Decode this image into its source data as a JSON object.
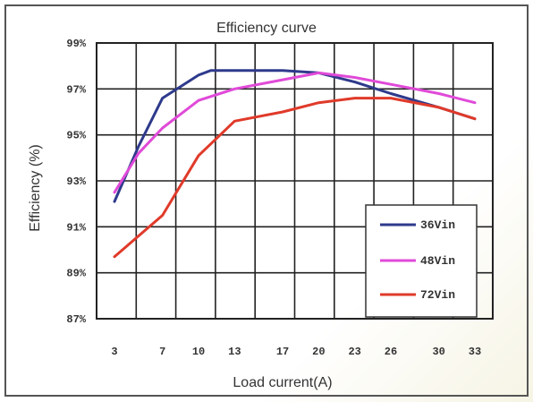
{
  "chart_data": {
    "type": "line",
    "title": "Efficiency curve",
    "xlabel": "Load current(A)",
    "ylabel": "Efficiency (%)",
    "x_ticks": [
      "3",
      "7",
      "10",
      "13",
      "17",
      "20",
      "23",
      "26",
      "30",
      "33"
    ],
    "y_ticks": [
      "99%",
      "97%",
      "95%",
      "93%",
      "91%",
      "89%",
      "87%"
    ],
    "xlim": [
      3,
      33
    ],
    "ylim": [
      87,
      99
    ],
    "grid": true,
    "legend_position": "bottom-right",
    "series": [
      {
        "name": "36Vin",
        "color": "#2e3a8c",
        "x": [
          3,
          5,
          7,
          10,
          11,
          13,
          17,
          20,
          23,
          26,
          30,
          33
        ],
        "y": [
          92.1,
          94.5,
          96.6,
          97.6,
          97.8,
          97.8,
          97.8,
          97.7,
          97.3,
          96.8,
          96.2,
          95.7
        ]
      },
      {
        "name": "48Vin",
        "color": "#e04ad8",
        "x": [
          3,
          5,
          7,
          10,
          13,
          17,
          20,
          23,
          26,
          30,
          33
        ],
        "y": [
          92.5,
          94.2,
          95.3,
          96.5,
          97.0,
          97.4,
          97.7,
          97.5,
          97.2,
          96.8,
          96.4
        ]
      },
      {
        "name": "72Vin",
        "color": "#e03a2a",
        "x": [
          3,
          7,
          10,
          13,
          17,
          20,
          23,
          26,
          30,
          33
        ],
        "y": [
          89.7,
          91.5,
          94.1,
          95.6,
          96.0,
          96.4,
          96.6,
          96.6,
          96.2,
          95.7
        ]
      }
    ]
  }
}
